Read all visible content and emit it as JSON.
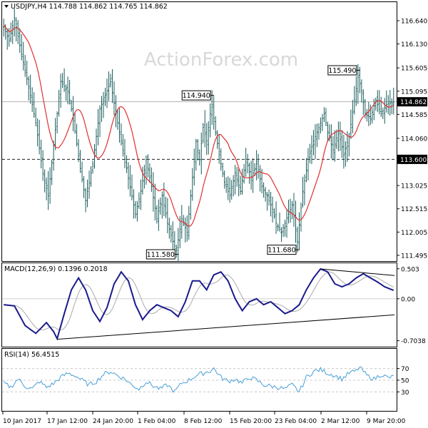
{
  "chart_data": {
    "type": "candlestick",
    "symbol_header": {
      "text": "USDJPY,H4  114.788 114.862 114.765 114.862"
    },
    "watermark": "ActionForex.com",
    "colors": {
      "candle": "#1a5c5c",
      "ma": "#e03030",
      "macd": "#1a1a8c",
      "signal": "#aaaaaa",
      "rsi": "#4a9fd8",
      "dashed_level": "#222222",
      "current_price_line": "#b0b0b0"
    },
    "x_axis": {
      "ticks": [
        "10 Jan 2017",
        "17 Jan 12:00",
        "24 Jan 20:00",
        "1 Feb 04:00",
        "8 Feb 12:00",
        "15 Feb 20:00",
        "23 Feb 04:00",
        "2 Mar 12:00",
        "9 Mar 20:00"
      ],
      "bar_count": 220
    },
    "price_panel": {
      "ylim": [
        111.4,
        117.0
      ],
      "ticks": [
        "116.640",
        "116.130",
        "115.605",
        "115.095",
        "114.585",
        "114.060",
        "113.550",
        "113.025",
        "112.515",
        "112.005",
        "111.495"
      ],
      "current_price": {
        "label": "114.862",
        "value": 114.862
      },
      "dashed_level": {
        "label": "113.600",
        "value": 113.6
      },
      "annotations": [
        {
          "label": "114.940",
          "value": 114.94,
          "bar": 117
        },
        {
          "label": "115.490",
          "value": 115.49,
          "bar": 199
        },
        {
          "label": "111.580",
          "value": 111.58,
          "bar": 97
        },
        {
          "label": "111.680",
          "value": 111.68,
          "bar": 165
        }
      ],
      "close_anchors": [
        [
          0,
          116.5
        ],
        [
          3,
          116.2
        ],
        [
          6,
          116.7
        ],
        [
          10,
          115.9
        ],
        [
          14,
          115.2
        ],
        [
          18,
          114.4
        ],
        [
          22,
          113.3
        ],
        [
          25,
          112.8
        ],
        [
          28,
          113.9
        ],
        [
          32,
          115.3
        ],
        [
          36,
          115.1
        ],
        [
          39,
          114.5
        ],
        [
          43,
          113.4
        ],
        [
          46,
          112.7
        ],
        [
          50,
          113.5
        ],
        [
          54,
          114.7
        ],
        [
          57,
          115.0
        ],
        [
          60,
          115.3
        ],
        [
          63,
          114.6
        ],
        [
          66,
          114.0
        ],
        [
          70,
          113.2
        ],
        [
          74,
          112.4
        ],
        [
          77,
          112.9
        ],
        [
          80,
          113.6
        ],
        [
          83,
          113.0
        ],
        [
          86,
          112.3
        ],
        [
          89,
          112.8
        ],
        [
          92,
          112.2
        ],
        [
          95,
          111.8
        ],
        [
          97,
          111.6
        ],
        [
          100,
          112.3
        ],
        [
          103,
          112.0
        ],
        [
          106,
          113.2
        ],
        [
          108,
          114.0
        ],
        [
          110,
          113.6
        ],
        [
          112,
          114.3
        ],
        [
          114,
          114.0
        ],
        [
          116,
          114.6
        ],
        [
          117,
          114.8
        ],
        [
          119,
          114.2
        ],
        [
          121,
          113.7
        ],
        [
          124,
          113.1
        ],
        [
          127,
          112.8
        ],
        [
          130,
          113.3
        ],
        [
          133,
          112.9
        ],
        [
          136,
          113.6
        ],
        [
          139,
          113.2
        ],
        [
          142,
          113.5
        ],
        [
          145,
          113.0
        ],
        [
          148,
          112.8
        ],
        [
          151,
          112.5
        ],
        [
          153,
          112.2
        ],
        [
          156,
          112.0
        ],
        [
          159,
          112.3
        ],
        [
          162,
          112.6
        ],
        [
          165,
          111.8
        ],
        [
          168,
          112.9
        ],
        [
          171,
          113.6
        ],
        [
          174,
          114.0
        ],
        [
          177,
          114.3
        ],
        [
          180,
          114.6
        ],
        [
          182,
          114.2
        ],
        [
          185,
          113.8
        ],
        [
          188,
          114.2
        ],
        [
          191,
          113.7
        ],
        [
          194,
          114.1
        ],
        [
          197,
          114.9
        ],
        [
          199,
          115.4
        ],
        [
          201,
          115.1
        ],
        [
          203,
          114.6
        ],
        [
          206,
          114.5
        ],
        [
          209,
          114.9
        ],
        [
          212,
          114.6
        ],
        [
          215,
          114.8
        ],
        [
          219,
          114.86
        ]
      ]
    },
    "macd_panel": {
      "label": "MACD(12,26,9) 0.1396 0.2018",
      "ylim": [
        -0.78,
        0.56
      ],
      "ticks": [
        "0.503",
        "0.00",
        "-0.7038"
      ],
      "macd_anchors": [
        [
          0,
          -0.1
        ],
        [
          6,
          -0.12
        ],
        [
          12,
          -0.45
        ],
        [
          18,
          -0.58
        ],
        [
          24,
          -0.4
        ],
        [
          28,
          -0.55
        ],
        [
          30,
          -0.67
        ],
        [
          34,
          -0.25
        ],
        [
          38,
          0.15
        ],
        [
          42,
          0.35
        ],
        [
          46,
          0.15
        ],
        [
          50,
          -0.2
        ],
        [
          54,
          -0.38
        ],
        [
          58,
          -0.15
        ],
        [
          62,
          0.25
        ],
        [
          66,
          0.45
        ],
        [
          70,
          0.3
        ],
        [
          74,
          -0.1
        ],
        [
          78,
          -0.35
        ],
        [
          82,
          -0.2
        ],
        [
          86,
          -0.1
        ],
        [
          90,
          -0.15
        ],
        [
          94,
          -0.2
        ],
        [
          98,
          -0.3
        ],
        [
          102,
          -0.05
        ],
        [
          106,
          0.3
        ],
        [
          110,
          0.3
        ],
        [
          114,
          0.15
        ],
        [
          118,
          0.4
        ],
        [
          122,
          0.45
        ],
        [
          126,
          0.3
        ],
        [
          130,
          0.0
        ],
        [
          134,
          -0.2
        ],
        [
          138,
          -0.05
        ],
        [
          142,
          0.0
        ],
        [
          146,
          -0.1
        ],
        [
          150,
          -0.05
        ],
        [
          154,
          -0.15
        ],
        [
          158,
          -0.25
        ],
        [
          162,
          -0.2
        ],
        [
          166,
          -0.1
        ],
        [
          170,
          0.15
        ],
        [
          174,
          0.35
        ],
        [
          178,
          0.5
        ],
        [
          182,
          0.45
        ],
        [
          186,
          0.25
        ],
        [
          190,
          0.2
        ],
        [
          194,
          0.25
        ],
        [
          198,
          0.35
        ],
        [
          202,
          0.42
        ],
        [
          206,
          0.35
        ],
        [
          210,
          0.28
        ],
        [
          214,
          0.2
        ],
        [
          219,
          0.14
        ]
      ],
      "trendlines": [
        {
          "x1": 30,
          "y1": -0.68,
          "x2": 220,
          "y2": -0.27
        },
        {
          "x1": 178,
          "y1": 0.5,
          "x2": 220,
          "y2": 0.39
        }
      ]
    },
    "rsi_panel": {
      "label": "RSI(14) 56.4515",
      "ylim": [
        0,
        100
      ],
      "ticks": [
        "70",
        "50",
        "30"
      ],
      "rsi_anchors": [
        [
          0,
          45
        ],
        [
          4,
          38
        ],
        [
          8,
          52
        ],
        [
          12,
          40
        ],
        [
          16,
          35
        ],
        [
          20,
          48
        ],
        [
          24,
          38
        ],
        [
          28,
          44
        ],
        [
          32,
          55
        ],
        [
          36,
          62
        ],
        [
          40,
          58
        ],
        [
          44,
          50
        ],
        [
          48,
          42
        ],
        [
          52,
          48
        ],
        [
          56,
          60
        ],
        [
          60,
          65
        ],
        [
          64,
          58
        ],
        [
          68,
          52
        ],
        [
          72,
          42
        ],
        [
          76,
          35
        ],
        [
          80,
          48
        ],
        [
          84,
          40
        ],
        [
          88,
          35
        ],
        [
          92,
          42
        ],
        [
          96,
          30
        ],
        [
          100,
          45
        ],
        [
          104,
          50
        ],
        [
          108,
          58
        ],
        [
          112,
          62
        ],
        [
          116,
          66
        ],
        [
          118,
          70
        ],
        [
          122,
          55
        ],
        [
          126,
          48
        ],
        [
          130,
          52
        ],
        [
          134,
          45
        ],
        [
          138,
          55
        ],
        [
          142,
          50
        ],
        [
          146,
          42
        ],
        [
          150,
          40
        ],
        [
          154,
          38
        ],
        [
          158,
          35
        ],
        [
          162,
          42
        ],
        [
          166,
          30
        ],
        [
          170,
          55
        ],
        [
          174,
          65
        ],
        [
          178,
          68
        ],
        [
          182,
          62
        ],
        [
          186,
          58
        ],
        [
          190,
          52
        ],
        [
          194,
          62
        ],
        [
          198,
          66
        ],
        [
          200,
          72
        ],
        [
          204,
          58
        ],
        [
          208,
          52
        ],
        [
          212,
          60
        ],
        [
          216,
          54
        ],
        [
          219,
          56
        ]
      ]
    }
  }
}
